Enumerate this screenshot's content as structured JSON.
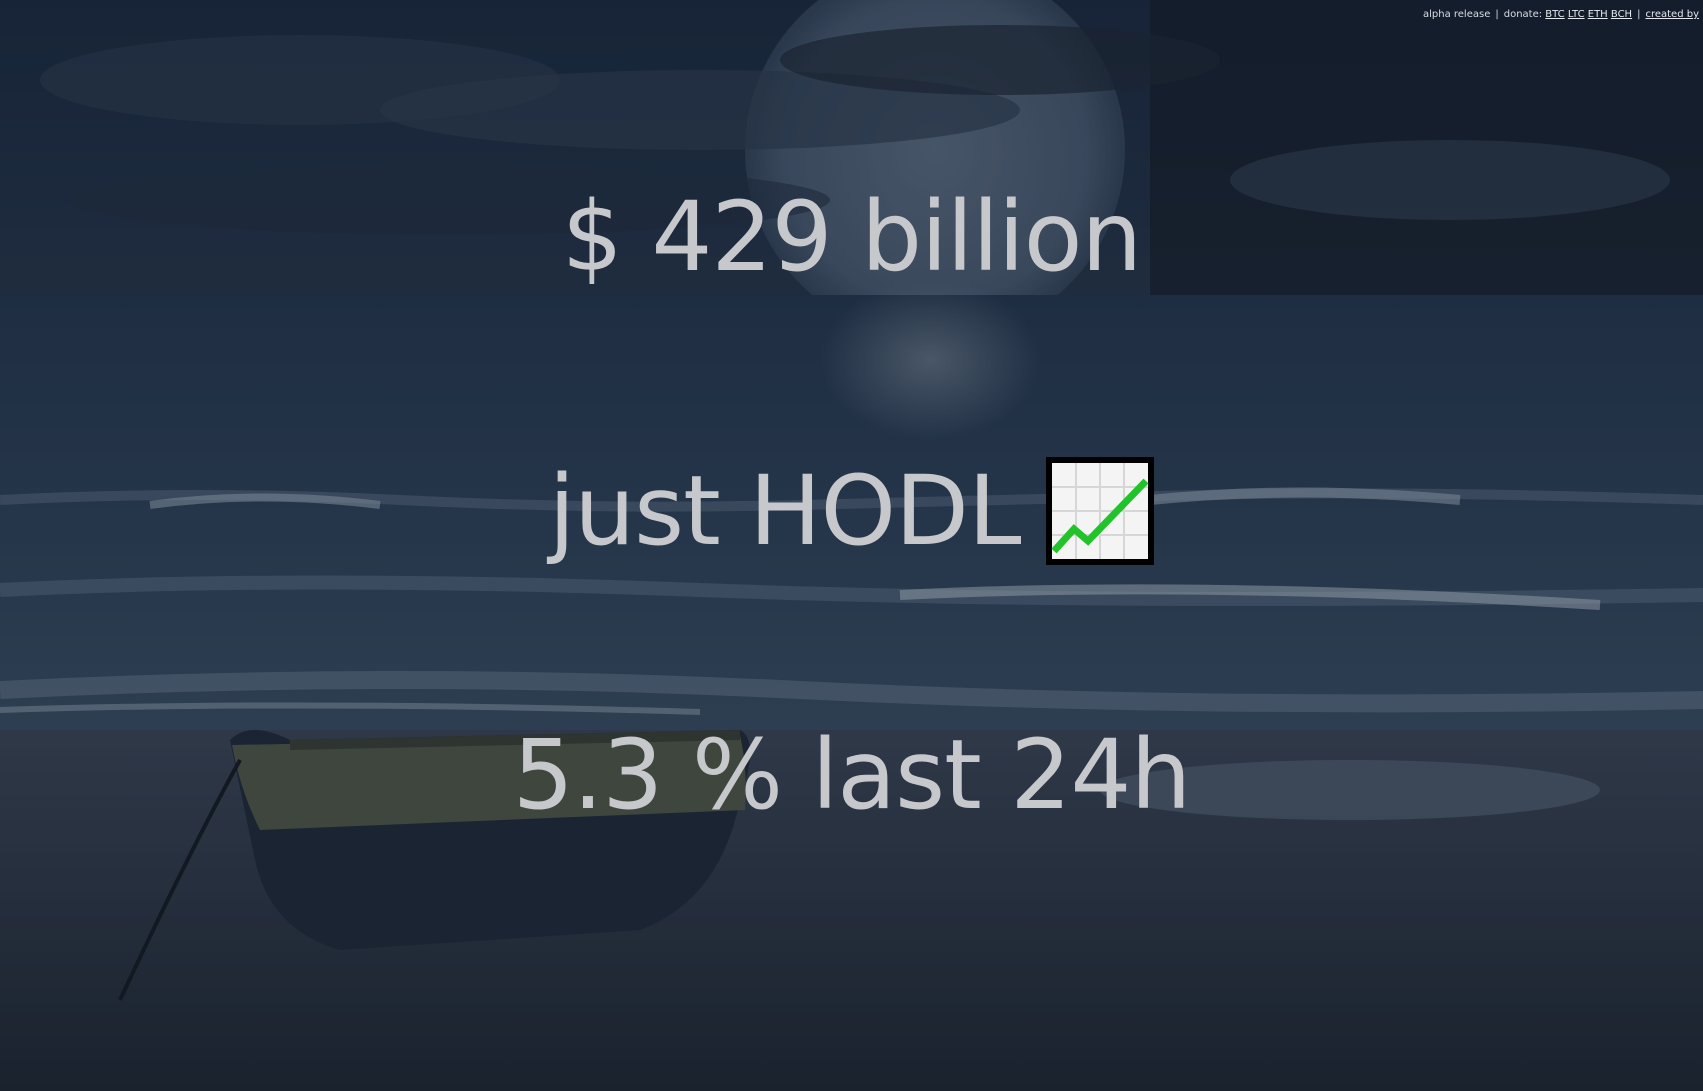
{
  "topbar": {
    "release": "alpha release",
    "separator1": "|",
    "donate_label": "donate:",
    "donate_links": [
      "BTC",
      "LTC",
      "ETH",
      "BCH"
    ],
    "separator2": "|",
    "created_by": "created by"
  },
  "main": {
    "market_cap": "$ 429 billion",
    "slogan": "just HODL",
    "slogan_icon": "chart-increasing-icon",
    "change": "5.3 % last 24h"
  },
  "colors": {
    "headline": "#c6c8cc",
    "chart_line": "#22c22a"
  }
}
